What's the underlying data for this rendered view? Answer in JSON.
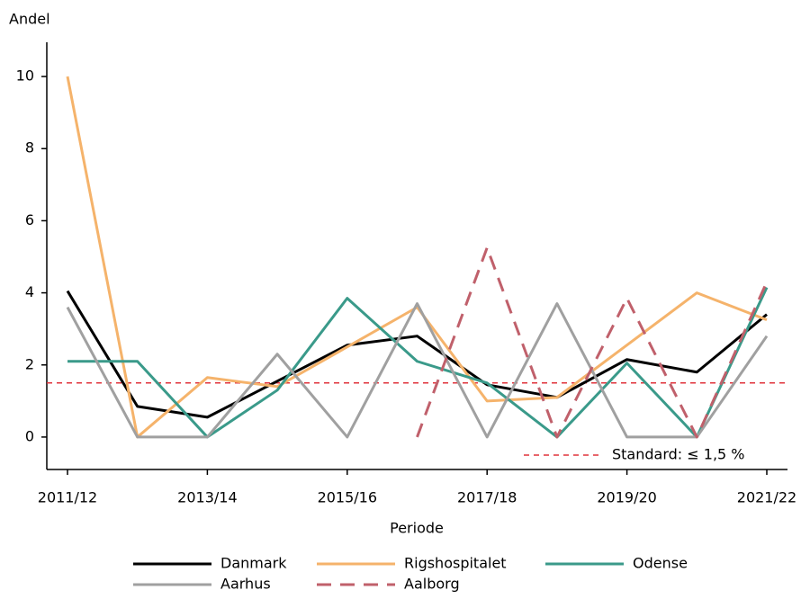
{
  "chart_data": {
    "type": "line",
    "y_label": "Andel",
    "x_label": "Periode",
    "categories": [
      "2011/12",
      null,
      "2013/14",
      null,
      "2015/16",
      null,
      "2017/18",
      null,
      "2019/20",
      null,
      "2021/22"
    ],
    "series": [
      {
        "name": "Danmark",
        "color": "#000000",
        "style": "solid",
        "values": [
          4.05,
          0.85,
          0.55,
          1.55,
          2.55,
          2.8,
          1.45,
          1.1,
          2.15,
          1.8,
          3.4
        ]
      },
      {
        "name": "Rigshospitalet",
        "color": "#f5b36b",
        "style": "solid",
        "values": [
          10,
          0,
          1.65,
          1.4,
          2.5,
          3.6,
          1.0,
          1.1,
          2.55,
          4.0,
          3.25
        ]
      },
      {
        "name": "Odense",
        "color": "#3a9a8a",
        "style": "solid",
        "values": [
          2.1,
          2.1,
          0,
          1.3,
          3.85,
          2.1,
          1.5,
          0,
          2.05,
          0,
          4.15
        ]
      },
      {
        "name": "Aarhus",
        "color": "#a0a0a0",
        "style": "solid",
        "values": [
          3.6,
          0,
          0,
          2.3,
          0,
          3.7,
          0,
          3.7,
          0,
          0,
          2.8
        ]
      },
      {
        "name": "Aalborg",
        "color": "#c0606b",
        "style": "dashed",
        "values": [
          null,
          null,
          null,
          null,
          null,
          0,
          5.25,
          0,
          3.85,
          0,
          4.3
        ]
      }
    ],
    "reference_line": {
      "value": 1.5,
      "label": "Standard: ≤ 1,5 %",
      "color": "#e0333c"
    },
    "ylim": [
      -0.9,
      10.95
    ],
    "yticks": [
      0,
      2,
      4,
      6,
      8,
      10
    ]
  }
}
